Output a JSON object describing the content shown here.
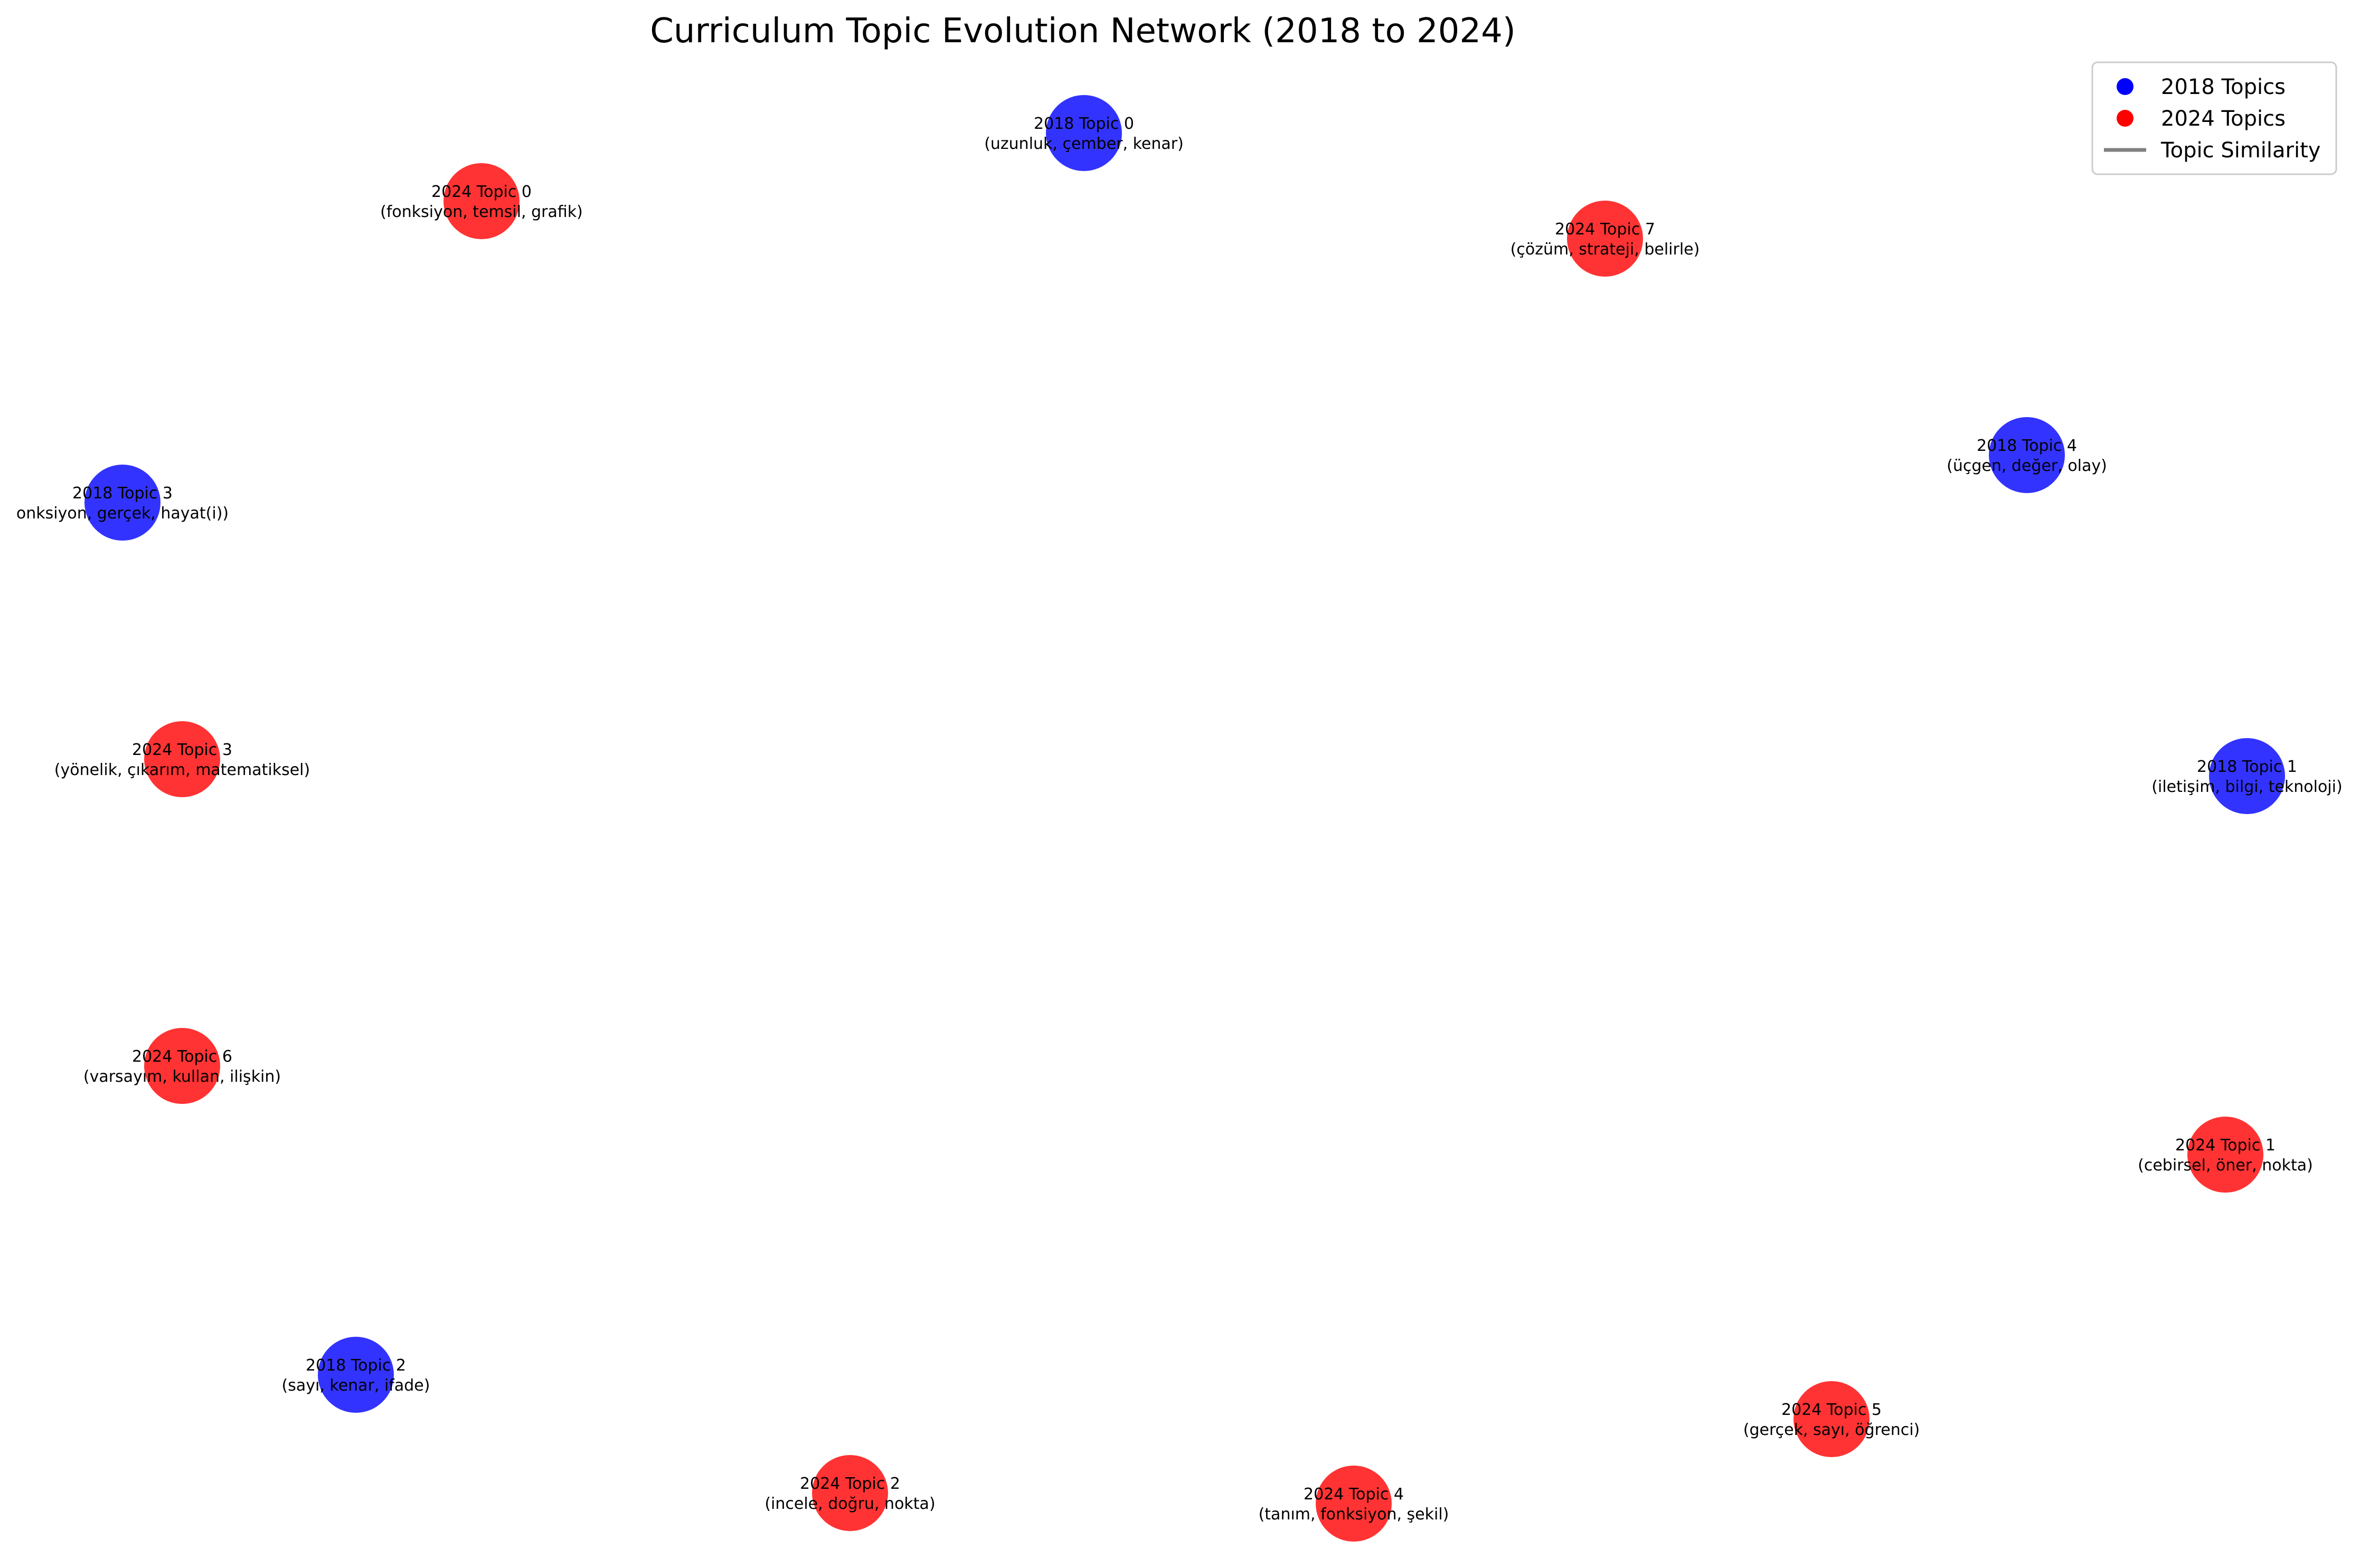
{
  "title": "Curriculum Topic Evolution Network (2018 to 2024)",
  "colors": {
    "topics_2018": "#0000ff",
    "topics_2024": "#ff0000",
    "similarity": "#808080"
  },
  "legend": {
    "placement": "top-right",
    "items": [
      {
        "label": "2018 Topics",
        "kind": "dot",
        "group": "2018"
      },
      {
        "label": "2024 Topics",
        "kind": "dot",
        "group": "2024"
      },
      {
        "label": "Topic Similarity",
        "kind": "line",
        "group": "edge"
      }
    ]
  },
  "nodes": [
    {
      "id": "2018-0",
      "group": "2018",
      "title": "2018 Topic 0",
      "keywords": "(uzunluk, çember, kenar)"
    },
    {
      "id": "2024-0",
      "group": "2024",
      "title": "2024 Topic 0",
      "keywords": "(fonksiyon, temsil, grafik)"
    },
    {
      "id": "2024-7",
      "group": "2024",
      "title": "2024 Topic 7",
      "keywords": "(çözüm, strateji, belirle)"
    },
    {
      "id": "2018-4",
      "group": "2018",
      "title": "2018 Topic 4",
      "keywords": "(üçgen, değer, olay)"
    },
    {
      "id": "2018-3",
      "group": "2018",
      "title": "2018 Topic 3",
      "keywords": "onksiyon, gerçek, hayat(i))"
    },
    {
      "id": "2024-3",
      "group": "2024",
      "title": "2024 Topic 3",
      "keywords": "(yönelik, çıkarım, matematiksel)"
    },
    {
      "id": "2018-1",
      "group": "2018",
      "title": "2018 Topic 1",
      "keywords": "(iletişim, bilgi, teknoloji)"
    },
    {
      "id": "2024-6",
      "group": "2024",
      "title": "2024 Topic 6",
      "keywords": "(varsayım, kullan, ilişkin)"
    },
    {
      "id": "2024-1",
      "group": "2024",
      "title": "2024 Topic 1",
      "keywords": "(cebirsel, öner, nokta)"
    },
    {
      "id": "2018-2",
      "group": "2018",
      "title": "2018 Topic 2",
      "keywords": "(sayı, kenar, ifade)"
    },
    {
      "id": "2024-5",
      "group": "2024",
      "title": "2024 Topic 5",
      "keywords": "(gerçek, sayı, öğrenci)"
    },
    {
      "id": "2024-2",
      "group": "2024",
      "title": "2024 Topic 2",
      "keywords": "(incele, doğru, nokta)"
    },
    {
      "id": "2024-4",
      "group": "2024",
      "title": "2024 Topic 4",
      "keywords": "(tanım, fonksiyon, şekil)"
    }
  ],
  "edges": []
}
